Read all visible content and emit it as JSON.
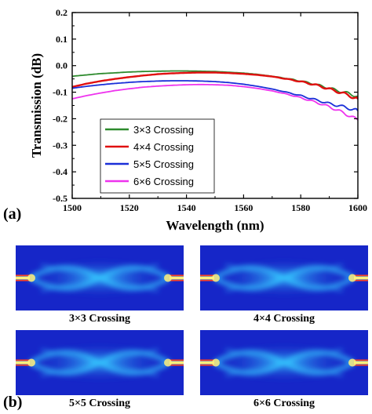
{
  "panel_a_label": "(a)",
  "panel_b_label": "(b)",
  "colors": {
    "c3": "#2e8b2e",
    "c4": "#e01010",
    "c5": "#1a2fd8",
    "c6": "#ee33ee",
    "sim_background": "#1626c8",
    "sim_beam": "#36c8ff",
    "sim_core": "#fff07a"
  },
  "chart_data": {
    "type": "line",
    "xlabel": "Wavelength (nm)",
    "ylabel": "Transmission (dB)",
    "xlim": [
      1500,
      1600
    ],
    "ylim": [
      -0.5,
      0.2
    ],
    "xticks": [
      "1500",
      "1520",
      "1540",
      "1560",
      "1580",
      "1600"
    ],
    "yticks": [
      "0.2",
      "0.1",
      "0.0",
      "-0.1",
      "-0.2",
      "-0.3",
      "-0.4",
      "-0.5"
    ],
    "legend_position": "lower-left",
    "x": [
      1500,
      1505,
      1510,
      1515,
      1520,
      1525,
      1530,
      1535,
      1540,
      1545,
      1550,
      1555,
      1560,
      1565,
      1570,
      1575,
      1580,
      1585,
      1590,
      1595,
      1600
    ],
    "series": [
      {
        "name": "3×3 Crossing",
        "color_key": "c3",
        "values": [
          -0.04,
          -0.035,
          -0.03,
          -0.027,
          -0.024,
          -0.022,
          -0.021,
          -0.02,
          -0.02,
          -0.021,
          -0.022,
          -0.025,
          -0.028,
          -0.033,
          -0.04,
          -0.048,
          -0.058,
          -0.07,
          -0.085,
          -0.1,
          -0.115
        ]
      },
      {
        "name": "4×4 Crossing",
        "color_key": "c4",
        "values": [
          -0.08,
          -0.068,
          -0.058,
          -0.05,
          -0.043,
          -0.037,
          -0.032,
          -0.029,
          -0.027,
          -0.026,
          -0.026,
          -0.028,
          -0.031,
          -0.035,
          -0.041,
          -0.05,
          -0.06,
          -0.072,
          -0.088,
          -0.105,
          -0.125
        ]
      },
      {
        "name": "5×5 Crossing",
        "color_key": "c5",
        "values": [
          -0.085,
          -0.078,
          -0.072,
          -0.067,
          -0.063,
          -0.06,
          -0.058,
          -0.057,
          -0.057,
          -0.058,
          -0.06,
          -0.064,
          -0.07,
          -0.078,
          -0.088,
          -0.1,
          -0.113,
          -0.128,
          -0.143,
          -0.155,
          -0.17
        ]
      },
      {
        "name": "6×6 Crossing",
        "color_key": "c6",
        "values": [
          -0.125,
          -0.113,
          -0.103,
          -0.094,
          -0.087,
          -0.081,
          -0.077,
          -0.074,
          -0.072,
          -0.071,
          -0.072,
          -0.074,
          -0.079,
          -0.086,
          -0.095,
          -0.107,
          -0.121,
          -0.137,
          -0.155,
          -0.178,
          -0.205
        ]
      }
    ]
  },
  "simulations": [
    {
      "caption": "3×3 Crossing"
    },
    {
      "caption": "4×4 Crossing"
    },
    {
      "caption": "5×5 Crossing"
    },
    {
      "caption": "6×6 Crossing"
    }
  ]
}
